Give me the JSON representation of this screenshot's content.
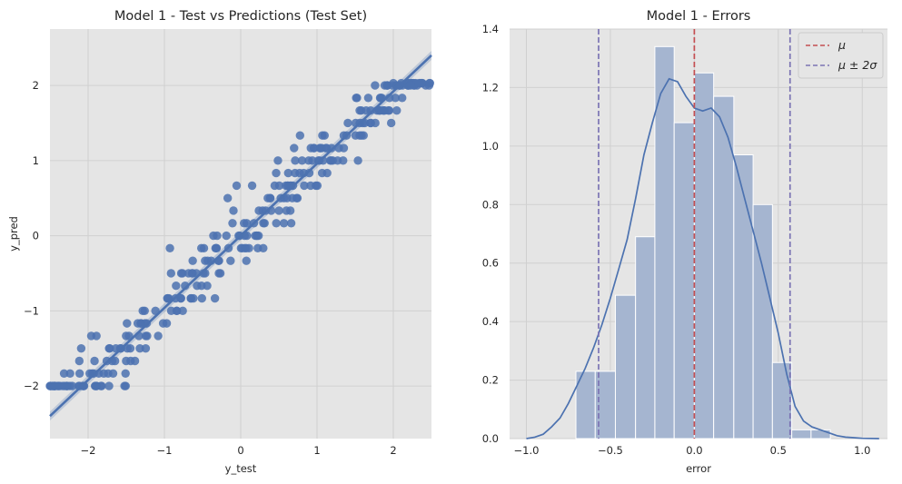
{
  "chart_data": [
    {
      "type": "scatter",
      "title": "Model 1 - Test vs Predictions (Test Set)",
      "xlabel": "y_test",
      "ylabel": "y_pred",
      "xlim": [
        -2.5,
        2.5
      ],
      "ylim": [
        -2.7,
        2.75
      ],
      "xticks": [
        -2,
        -1,
        0,
        1,
        2
      ],
      "xtick_labels": [
        "−2",
        "−1",
        "0",
        "1",
        "2"
      ],
      "yticks": [
        -2,
        -1,
        0,
        1,
        2
      ],
      "ytick_labels": [
        "−2",
        "−1",
        "0",
        "1",
        "2"
      ],
      "grid": true,
      "point_color": "#4c72b0",
      "regression_line": {
        "slope": 0.96,
        "intercept": 0.0,
        "color": "#4c72b0"
      },
      "seed": 7,
      "n_points": 300
    },
    {
      "type": "histogram",
      "title": "Model 1  - Errors",
      "xlabel": "error",
      "xlim": [
        -1.1,
        1.15
      ],
      "ylim": [
        0,
        1.4
      ],
      "xticks": [
        -1.0,
        -0.5,
        0.0,
        0.5,
        1.0
      ],
      "xtick_labels": [
        "−1.0",
        "−0.5",
        "0.0",
        "0.5",
        "1.0"
      ],
      "yticks": [
        0,
        0.2,
        0.4,
        0.6,
        0.8,
        1.0,
        1.2,
        1.4
      ],
      "ytick_labels": [
        "0.0",
        "0.2",
        "0.4",
        "0.6",
        "0.8",
        "1.0",
        "1.2",
        "1.4"
      ],
      "grid": true,
      "bins": [
        {
          "x0": -0.705,
          "x1": -0.59,
          "height": 0.23
        },
        {
          "x0": -0.59,
          "x1": -0.47,
          "height": 0.23
        },
        {
          "x0": -0.47,
          "x1": -0.35,
          "height": 0.49
        },
        {
          "x0": -0.35,
          "x1": -0.235,
          "height": 0.69
        },
        {
          "x0": -0.235,
          "x1": -0.12,
          "height": 1.34
        },
        {
          "x0": -0.12,
          "x1": 0.0,
          "height": 1.08
        },
        {
          "x0": 0.0,
          "x1": 0.115,
          "height": 1.25
        },
        {
          "x0": 0.115,
          "x1": 0.235,
          "height": 1.17
        },
        {
          "x0": 0.235,
          "x1": 0.35,
          "height": 0.97
        },
        {
          "x0": 0.35,
          "x1": 0.465,
          "height": 0.8
        },
        {
          "x0": 0.465,
          "x1": 0.58,
          "height": 0.26
        },
        {
          "x0": 0.58,
          "x1": 0.695,
          "height": 0.03
        },
        {
          "x0": 0.695,
          "x1": 0.81,
          "height": 0.03
        }
      ],
      "kde": [
        [
          -1.0,
          0.0
        ],
        [
          -0.95,
          0.005
        ],
        [
          -0.9,
          0.015
        ],
        [
          -0.85,
          0.04
        ],
        [
          -0.8,
          0.07
        ],
        [
          -0.75,
          0.12
        ],
        [
          -0.7,
          0.18
        ],
        [
          -0.65,
          0.24
        ],
        [
          -0.6,
          0.31
        ],
        [
          -0.55,
          0.39
        ],
        [
          -0.5,
          0.48
        ],
        [
          -0.45,
          0.58
        ],
        [
          -0.4,
          0.68
        ],
        [
          -0.35,
          0.82
        ],
        [
          -0.3,
          0.97
        ],
        [
          -0.25,
          1.08
        ],
        [
          -0.2,
          1.18
        ],
        [
          -0.15,
          1.23
        ],
        [
          -0.1,
          1.22
        ],
        [
          -0.05,
          1.17
        ],
        [
          0.0,
          1.13
        ],
        [
          0.05,
          1.12
        ],
        [
          0.1,
          1.13
        ],
        [
          0.15,
          1.1
        ],
        [
          0.2,
          1.03
        ],
        [
          0.25,
          0.93
        ],
        [
          0.3,
          0.82
        ],
        [
          0.35,
          0.71
        ],
        [
          0.4,
          0.6
        ],
        [
          0.45,
          0.48
        ],
        [
          0.5,
          0.36
        ],
        [
          0.55,
          0.22
        ],
        [
          0.6,
          0.11
        ],
        [
          0.65,
          0.06
        ],
        [
          0.7,
          0.04
        ],
        [
          0.75,
          0.03
        ],
        [
          0.8,
          0.02
        ],
        [
          0.85,
          0.01
        ],
        [
          0.9,
          0.005
        ],
        [
          0.95,
          0.003
        ],
        [
          1.0,
          0.001
        ],
        [
          1.1,
          0.0
        ]
      ],
      "mu": 0.0,
      "mu_plus_2sigma": 0.57,
      "mu_minus_2sigma": -0.57,
      "bar_color": "#a5b5d0",
      "kde_color": "#4c72b0",
      "mu_color": "#c44e52",
      "sigma_color": "#7c74b4",
      "legend": [
        "μ",
        "μ ± 2σ"
      ],
      "legend_position": "top-right"
    }
  ]
}
